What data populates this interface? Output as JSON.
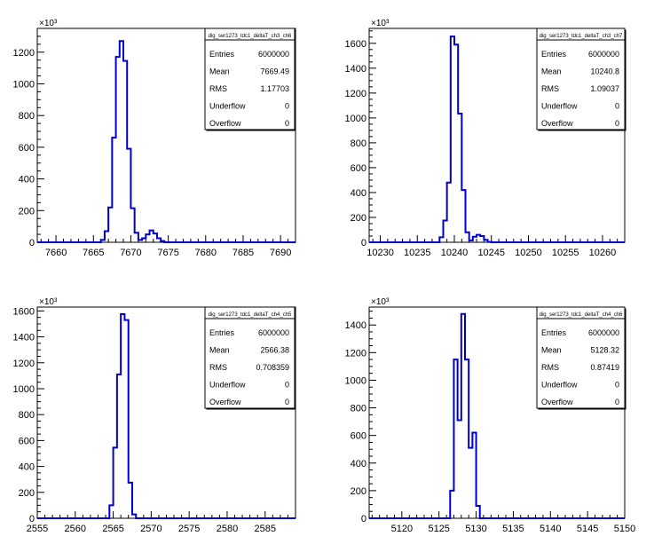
{
  "chart_data": [
    {
      "type": "histogram",
      "title": "",
      "exponent_label": "×10³",
      "x_ticks": [
        7660,
        7665,
        7670,
        7675,
        7680,
        7685,
        7690
      ],
      "xlim": [
        7657.5,
        7692.0
      ],
      "y_ticks": [
        0,
        200,
        400,
        600,
        800,
        1000,
        1200
      ],
      "y_tick_labels": [
        "0",
        "200",
        "400",
        "600",
        "800",
        "1000",
        "1200"
      ],
      "ylim": [
        0,
        1350
      ],
      "bin_edges": [
        7666.0,
        7666.5,
        7667.0,
        7667.5,
        7668.0,
        7668.5,
        7669.0,
        7669.5,
        7670.0,
        7670.5,
        7671.0,
        7671.5,
        7672.0,
        7672.5,
        7673.0,
        7673.5,
        7674.0,
        7674.5,
        7675.0,
        7675.5,
        7676.0
      ],
      "counts": [
        15,
        70,
        220,
        660,
        1170,
        1270,
        1145,
        590,
        215,
        60,
        15,
        25,
        50,
        75,
        55,
        25,
        8,
        0,
        0,
        0
      ],
      "stats": {
        "name": "dig_ser1273_tdc1_deltaT_ch3_ch6",
        "rows": [
          {
            "label": "Entries",
            "value": "6000000"
          },
          {
            "label": "Mean",
            "value": "7669.49"
          },
          {
            "label": "RMS",
            "value": "1.17703"
          },
          {
            "label": "Underflow",
            "value": "0"
          },
          {
            "label": "Overflow",
            "value": "0"
          }
        ]
      }
    },
    {
      "type": "histogram",
      "title": "",
      "exponent_label": "×10³",
      "x_ticks": [
        10230,
        10235,
        10240,
        10245,
        10250,
        10255,
        10260
      ],
      "xlim": [
        10228.5,
        10263.0
      ],
      "y_ticks": [
        0,
        200,
        400,
        600,
        800,
        1000,
        1200,
        1400,
        1600
      ],
      "y_tick_labels": [
        "0",
        "200",
        "400",
        "600",
        "800",
        "1000",
        "1200",
        "1400",
        "1600"
      ],
      "ylim": [
        0,
        1720
      ],
      "bin_edges": [
        10238.0,
        10238.5,
        10239.0,
        10239.5,
        10240.0,
        10240.5,
        10241.0,
        10241.5,
        10242.0,
        10242.5,
        10243.0,
        10243.5,
        10244.0,
        10244.5,
        10245.0,
        10245.5
      ],
      "counts": [
        40,
        175,
        480,
        1655,
        1590,
        1035,
        420,
        80,
        15,
        45,
        60,
        50,
        20,
        3,
        0
      ],
      "stats": {
        "name": "dig_ser1273_tdc1_deltaT_ch3_ch7",
        "rows": [
          {
            "label": "Entries",
            "value": "6000000"
          },
          {
            "label": "Mean",
            "value": "10240.8"
          },
          {
            "label": "RMS",
            "value": "1.09037"
          },
          {
            "label": "Underflow",
            "value": "0"
          },
          {
            "label": "Overflow",
            "value": "0"
          }
        ]
      }
    },
    {
      "type": "histogram",
      "title": "",
      "exponent_label": "×10³",
      "x_ticks": [
        2555,
        2560,
        2565,
        2570,
        2575,
        2580,
        2585
      ],
      "xlim": [
        2555.0,
        2589.0
      ],
      "y_ticks": [
        0,
        200,
        400,
        600,
        800,
        1000,
        1200,
        1400,
        1600
      ],
      "y_tick_labels": [
        "0",
        "200",
        "400",
        "600",
        "800",
        "1000",
        "1200",
        "1400",
        "1600"
      ],
      "ylim": [
        0,
        1630
      ],
      "bin_edges": [
        2564.5,
        2565.0,
        2565.5,
        2566.0,
        2566.5,
        2567.0,
        2567.5,
        2568.0,
        2568.5
      ],
      "counts": [
        100,
        545,
        1110,
        1575,
        1530,
        275,
        30,
        0
      ],
      "stats": {
        "name": "dig_ser1273_tdc1_deltaT_ch4_ch5",
        "rows": [
          {
            "label": "Entries",
            "value": "6000000"
          },
          {
            "label": "Mean",
            "value": "2566.38"
          },
          {
            "label": "RMS",
            "value": "0.708359"
          },
          {
            "label": "Underflow",
            "value": "0"
          },
          {
            "label": "Overflow",
            "value": "0"
          }
        ]
      }
    },
    {
      "type": "histogram",
      "title": "",
      "exponent_label": "×10³",
      "x_ticks": [
        5120,
        5125,
        5130,
        5135,
        5140,
        5145,
        5150
      ],
      "xlim": [
        5115.6,
        5150.0
      ],
      "y_ticks": [
        0,
        200,
        400,
        600,
        800,
        1000,
        1200,
        1400
      ],
      "y_tick_labels": [
        "0",
        "200",
        "400",
        "600",
        "800",
        "1000",
        "1200",
        "1400"
      ],
      "ylim": [
        0,
        1530
      ],
      "bin_edges": [
        5126.5,
        5127.0,
        5127.5,
        5128.0,
        5128.5,
        5129.0,
        5129.5,
        5130.0,
        5130.5,
        5131.0
      ],
      "counts": [
        200,
        1150,
        710,
        1480,
        1150,
        510,
        620,
        90,
        0
      ],
      "stats": {
        "name": "dig_ser1273_tdc1_deltaT_ch4_ch6",
        "rows": [
          {
            "label": "Entries",
            "value": "6000000"
          },
          {
            "label": "Mean",
            "value": "5128.32"
          },
          {
            "label": "RMS",
            "value": "0.87419"
          },
          {
            "label": "Underflow",
            "value": "0"
          },
          {
            "label": "Overflow",
            "value": "0"
          }
        ]
      }
    }
  ],
  "style": {
    "line_color": "#0000cc",
    "axis_color": "#000000",
    "background": "#ffffff"
  }
}
